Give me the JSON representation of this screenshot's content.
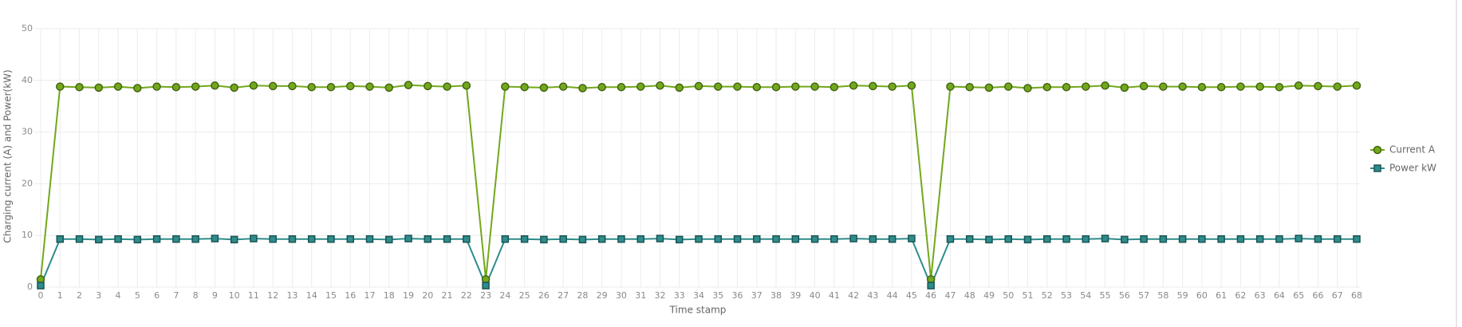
{
  "chart_data": {
    "type": "line",
    "x_label": "Time stamp",
    "y_label": "Charging current (A) and Power(kW)",
    "x": [
      0,
      1,
      2,
      3,
      4,
      5,
      6,
      7,
      8,
      9,
      10,
      11,
      12,
      13,
      14,
      15,
      16,
      17,
      18,
      19,
      20,
      21,
      22,
      23,
      24,
      25,
      26,
      27,
      28,
      29,
      30,
      31,
      32,
      33,
      34,
      35,
      36,
      37,
      38,
      39,
      40,
      41,
      42,
      43,
      44,
      45,
      46,
      47,
      48,
      49,
      50,
      51,
      52,
      53,
      54,
      55,
      56,
      57,
      58,
      59,
      60,
      61,
      62,
      63,
      64,
      65,
      66,
      67,
      68
    ],
    "xlim": [
      0,
      68
    ],
    "xticks": [
      0,
      1,
      2,
      3,
      4,
      5,
      6,
      7,
      8,
      9,
      10,
      11,
      12,
      13,
      14,
      15,
      16,
      17,
      18,
      19,
      20,
      21,
      22,
      23,
      24,
      25,
      26,
      27,
      28,
      29,
      30,
      31,
      32,
      33,
      34,
      35,
      36,
      37,
      38,
      39,
      40,
      41,
      42,
      43,
      44,
      45,
      46,
      47,
      48,
      49,
      50,
      51,
      52,
      53,
      54,
      55,
      56,
      57,
      58,
      59,
      60,
      61,
      62,
      63,
      64,
      65,
      66,
      67,
      68
    ],
    "ylim": [
      0,
      50
    ],
    "yticks": [
      0,
      10,
      20,
      30,
      40,
      50
    ],
    "grid": true,
    "legend": "right",
    "series": [
      {
        "name": "Current A",
        "color": "#72a81c",
        "marker": "circle",
        "values": [
          1.5,
          38.8,
          38.7,
          38.6,
          38.8,
          38.5,
          38.8,
          38.7,
          38.8,
          39.0,
          38.6,
          39.0,
          38.9,
          38.9,
          38.7,
          38.7,
          38.9,
          38.8,
          38.6,
          39.1,
          38.9,
          38.8,
          39.0,
          1.5,
          38.8,
          38.7,
          38.6,
          38.8,
          38.5,
          38.7,
          38.7,
          38.8,
          39.0,
          38.6,
          38.9,
          38.8,
          38.8,
          38.7,
          38.7,
          38.8,
          38.8,
          38.7,
          39.0,
          38.9,
          38.8,
          39.0,
          1.5,
          38.8,
          38.7,
          38.6,
          38.8,
          38.5,
          38.7,
          38.7,
          38.8,
          39.0,
          38.6,
          38.9,
          38.8,
          38.8,
          38.7,
          38.7,
          38.8,
          38.8,
          38.7,
          39.0,
          38.9,
          38.8,
          39.0
        ]
      },
      {
        "name": "Power kW",
        "color": "#2e8c8c",
        "marker": "square",
        "values": [
          0.3,
          9.3,
          9.3,
          9.2,
          9.3,
          9.2,
          9.3,
          9.3,
          9.3,
          9.4,
          9.2,
          9.4,
          9.3,
          9.3,
          9.3,
          9.3,
          9.3,
          9.3,
          9.2,
          9.4,
          9.3,
          9.3,
          9.3,
          0.3,
          9.3,
          9.3,
          9.2,
          9.3,
          9.2,
          9.3,
          9.3,
          9.3,
          9.4,
          9.2,
          9.3,
          9.3,
          9.3,
          9.3,
          9.3,
          9.3,
          9.3,
          9.3,
          9.4,
          9.3,
          9.3,
          9.4,
          0.3,
          9.3,
          9.3,
          9.2,
          9.3,
          9.2,
          9.3,
          9.3,
          9.3,
          9.4,
          9.2,
          9.3,
          9.3,
          9.3,
          9.3,
          9.3,
          9.3,
          9.3,
          9.3,
          9.4,
          9.3,
          9.3,
          9.3
        ]
      }
    ]
  }
}
